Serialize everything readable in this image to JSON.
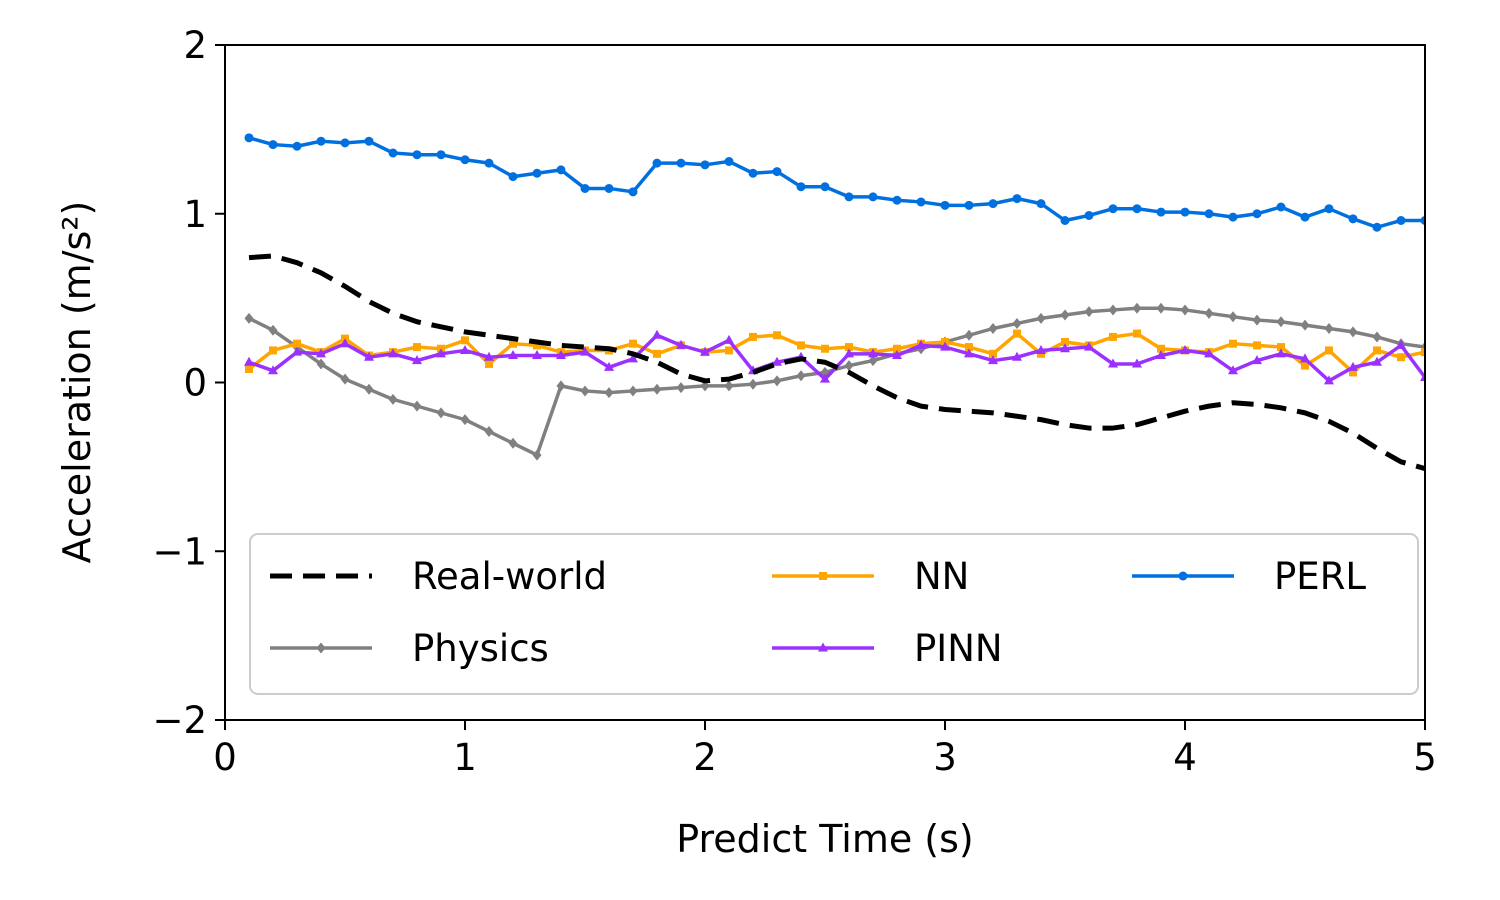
{
  "chart_data": {
    "type": "line",
    "xlabel": "Predict Time (s)",
    "ylabel": "Acceleration (m/s²)",
    "xlim": [
      0,
      5
    ],
    "ylim": [
      -2,
      2
    ],
    "xticks": [
      "0",
      "1",
      "2",
      "3",
      "4",
      "5"
    ],
    "yticks": [
      "−2",
      "−1",
      "0",
      "1",
      "2"
    ],
    "grid": false,
    "legend_position": "lower-center, 3 columns",
    "x": [
      0.1,
      0.2,
      0.3,
      0.4,
      0.5,
      0.6,
      0.7,
      0.8,
      0.9,
      1.0,
      1.1,
      1.2,
      1.3,
      1.4,
      1.5,
      1.6,
      1.7,
      1.8,
      1.9,
      2.0,
      2.1,
      2.2,
      2.3,
      2.4,
      2.5,
      2.6,
      2.7,
      2.8,
      2.9,
      3.0,
      3.1,
      3.2,
      3.3,
      3.4,
      3.5,
      3.6,
      3.7,
      3.8,
      3.9,
      4.0,
      4.1,
      4.2,
      4.3,
      4.4,
      4.5,
      4.6,
      4.7,
      4.8,
      4.9,
      5.0
    ],
    "series": [
      {
        "name": "Real-world",
        "color": "#000000",
        "style": "dashed",
        "marker": "none",
        "values": [
          0.74,
          0.75,
          0.71,
          0.65,
          0.57,
          0.48,
          0.41,
          0.36,
          0.33,
          0.3,
          0.28,
          0.26,
          0.24,
          0.22,
          0.21,
          0.2,
          0.17,
          0.12,
          0.05,
          0.01,
          0.02,
          0.06,
          0.11,
          0.14,
          0.12,
          0.06,
          -0.02,
          -0.09,
          -0.14,
          -0.16,
          -0.17,
          -0.18,
          -0.2,
          -0.22,
          -0.25,
          -0.27,
          -0.27,
          -0.25,
          -0.21,
          -0.17,
          -0.14,
          -0.12,
          -0.13,
          -0.15,
          -0.18,
          -0.23,
          -0.3,
          -0.39,
          -0.47,
          -0.51
        ]
      },
      {
        "name": "Physics",
        "color": "#808080",
        "style": "solid",
        "marker": "diamond",
        "values": [
          0.38,
          0.31,
          0.21,
          0.11,
          0.02,
          -0.04,
          -0.1,
          -0.14,
          -0.18,
          -0.22,
          -0.29,
          -0.36,
          -0.43,
          -0.02,
          -0.05,
          -0.06,
          -0.05,
          -0.04,
          -0.03,
          -0.02,
          -0.02,
          -0.01,
          0.01,
          0.04,
          0.06,
          0.1,
          0.13,
          0.17,
          0.2,
          0.24,
          0.28,
          0.32,
          0.35,
          0.38,
          0.4,
          0.42,
          0.43,
          0.44,
          0.44,
          0.43,
          0.41,
          0.39,
          0.37,
          0.36,
          0.34,
          0.32,
          0.3,
          0.27,
          0.23,
          0.21
        ]
      },
      {
        "name": "NN",
        "color": "#ffa500",
        "style": "solid",
        "marker": "square",
        "values": [
          0.08,
          0.19,
          0.23,
          0.18,
          0.26,
          0.16,
          0.18,
          0.21,
          0.2,
          0.25,
          0.11,
          0.23,
          0.22,
          0.18,
          0.19,
          0.19,
          0.23,
          0.17,
          0.22,
          0.18,
          0.19,
          0.27,
          0.28,
          0.22,
          0.2,
          0.21,
          0.18,
          0.2,
          0.23,
          0.24,
          0.21,
          0.17,
          0.29,
          0.17,
          0.24,
          0.22,
          0.27,
          0.29,
          0.2,
          0.19,
          0.18,
          0.23,
          0.22,
          0.21,
          0.1,
          0.19,
          0.06,
          0.19,
          0.15,
          0.18
        ]
      },
      {
        "name": "PINN",
        "color": "#9b30ff",
        "style": "solid",
        "marker": "triangle",
        "values": [
          0.12,
          0.07,
          0.18,
          0.17,
          0.23,
          0.15,
          0.17,
          0.13,
          0.17,
          0.19,
          0.15,
          0.16,
          0.16,
          0.16,
          0.18,
          0.09,
          0.14,
          0.28,
          0.22,
          0.18,
          0.25,
          0.07,
          0.12,
          0.15,
          0.02,
          0.17,
          0.17,
          0.16,
          0.22,
          0.21,
          0.17,
          0.13,
          0.15,
          0.19,
          0.2,
          0.21,
          0.11,
          0.11,
          0.16,
          0.19,
          0.17,
          0.07,
          0.13,
          0.17,
          0.14,
          0.01,
          0.09,
          0.12,
          0.22,
          0.03
        ]
      },
      {
        "name": "PERL",
        "color": "#0070e0",
        "style": "solid",
        "marker": "circle",
        "values": [
          1.45,
          1.41,
          1.4,
          1.43,
          1.42,
          1.43,
          1.36,
          1.35,
          1.35,
          1.32,
          1.3,
          1.22,
          1.24,
          1.26,
          1.15,
          1.15,
          1.13,
          1.3,
          1.3,
          1.29,
          1.31,
          1.24,
          1.25,
          1.16,
          1.16,
          1.1,
          1.1,
          1.08,
          1.07,
          1.05,
          1.05,
          1.06,
          1.09,
          1.06,
          0.96,
          0.99,
          1.03,
          1.03,
          1.01,
          1.01,
          1.0,
          0.98,
          1.0,
          1.04,
          0.98,
          1.03,
          0.97,
          0.92,
          0.96,
          0.96
        ]
      }
    ]
  }
}
